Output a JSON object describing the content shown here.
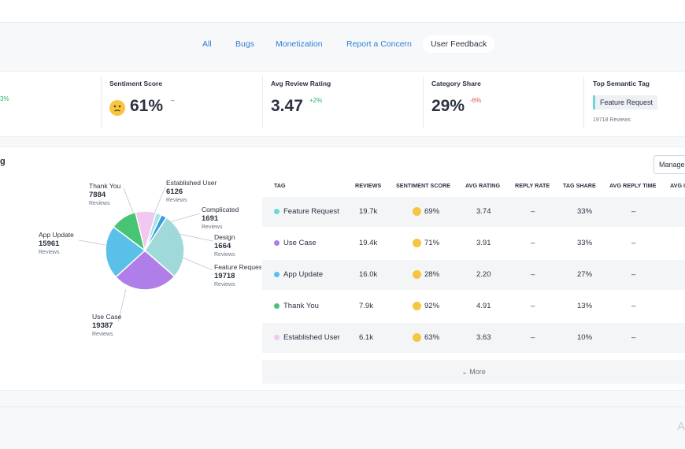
{
  "tabs": [
    "All",
    "Bugs",
    "Monetization",
    "Report a Concern",
    "User Feedback"
  ],
  "active_tab": "User Feedback",
  "kpis": {
    "partial_delta": "3%",
    "sentiment": {
      "label": "Sentiment Score",
      "value": "61%",
      "delta": "–",
      "icon": "neutral-face-icon"
    },
    "rating": {
      "label": "Avg Review Rating",
      "value": "3.47",
      "delta": "+2%"
    },
    "share": {
      "label": "Category Share",
      "value": "29%",
      "delta": "-6%"
    },
    "top_tag": {
      "label": "Top Semantic Tag",
      "tag": "Feature Request",
      "reviews": "19718 Reviews"
    }
  },
  "panel": {
    "title": "g",
    "manage_label": "Manage",
    "more_label": "More",
    "watermark": "A"
  },
  "pie": {
    "reviews_word": "Reviews",
    "slices": [
      {
        "name": "Feature Request",
        "count": "19718",
        "value": 19718,
        "color": "#9fd9d9"
      },
      {
        "name": "Use Case",
        "count": "19387",
        "value": 19387,
        "color": "#b07ee8"
      },
      {
        "name": "App Update",
        "count": "15961",
        "value": 15961,
        "color": "#5bc0e8"
      },
      {
        "name": "Thank You",
        "count": "7884",
        "value": 7884,
        "color": "#47c474"
      },
      {
        "name": "Established User",
        "count": "6126",
        "value": 6126,
        "color": "#f0c8f0"
      },
      {
        "name": "Complicated",
        "count": "1691",
        "value": 1691,
        "color": "#a8e6e6"
      },
      {
        "name": "Design",
        "count": "1664",
        "value": 1664,
        "color": "#3a9de0"
      }
    ]
  },
  "table": {
    "headers": [
      "TAG",
      "REVIEWS",
      "SENTIMENT SCORE",
      "AVG RATING",
      "REPLY RATE",
      "TAG SHARE",
      "AVG REPLY TIME",
      "AVG I"
    ],
    "rows": [
      {
        "tag": "Feature Request",
        "color": "#6ed6d6",
        "reviews": "19.7k",
        "sentiment": "69%",
        "rating": "3.74",
        "reply_rate": "–",
        "share": "33%",
        "reply_time": "–"
      },
      {
        "tag": "Use Case",
        "color": "#b07ee8",
        "reviews": "19.4k",
        "sentiment": "71%",
        "rating": "3.91",
        "reply_rate": "–",
        "share": "33%",
        "reply_time": "–"
      },
      {
        "tag": "App Update",
        "color": "#5bc0e8",
        "reviews": "16.0k",
        "sentiment": "28%",
        "rating": "2.20",
        "reply_rate": "–",
        "share": "27%",
        "reply_time": "–"
      },
      {
        "tag": "Thank You",
        "color": "#47c474",
        "reviews": "7.9k",
        "sentiment": "92%",
        "rating": "4.91",
        "reply_rate": "–",
        "share": "13%",
        "reply_time": "–"
      },
      {
        "tag": "Established User",
        "color": "#f0c8f0",
        "reviews": "6.1k",
        "sentiment": "63%",
        "rating": "3.63",
        "reply_rate": "–",
        "share": "10%",
        "reply_time": "–"
      }
    ]
  }
}
